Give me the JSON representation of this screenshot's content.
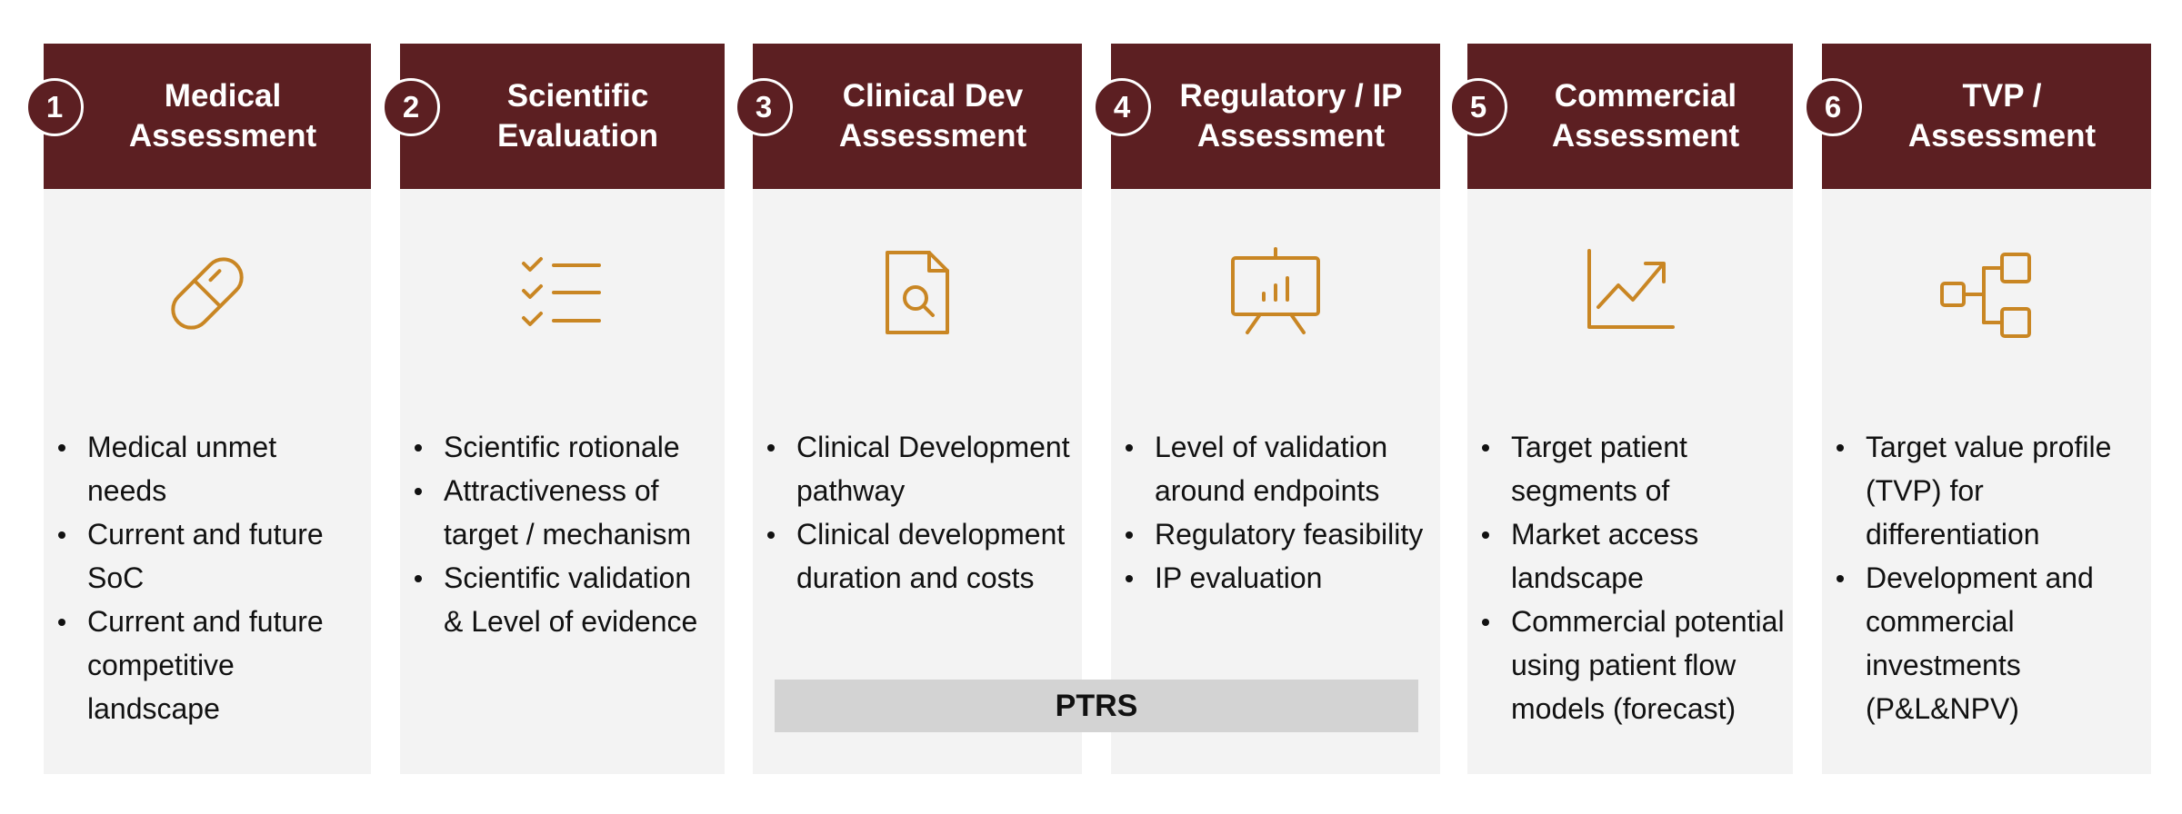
{
  "colors": {
    "header_bg": "#5c1f22",
    "panel_bg": "#f3f3f3",
    "icon_stroke": "#c98623",
    "ptrs_bg": "#d3d3d3"
  },
  "columns": [
    {
      "number": "1",
      "title": "Medical\nAssessment",
      "icon": "pill-icon",
      "bullets": [
        "Medical unmet needs",
        "Current and future SoC",
        "Current and future competitive landscape"
      ]
    },
    {
      "number": "2",
      "title": "Scientific\nEvaluation",
      "icon": "checklist-icon",
      "bullets": [
        "Scientific rotionale",
        "Attractiveness of target / mechanism",
        "Scientific validation & Level of evidence"
      ]
    },
    {
      "number": "3",
      "title": "Clinical Dev\nAssessment",
      "icon": "document-search-icon",
      "bullets": [
        "Clinical Development pathway",
        "Clinical development duration and costs"
      ]
    },
    {
      "number": "4",
      "title": "Regulatory / IP\nAssessment",
      "icon": "presentation-chart-icon",
      "bullets": [
        "Level of validation around endpoints",
        "Regulatory feasibility",
        "IP evaluation"
      ]
    },
    {
      "number": "5",
      "title": "Commercial\nAssessment",
      "icon": "trend-up-chart-icon",
      "bullets": [
        "Target patient segments of",
        "Market access landscape",
        "Commercial potential using patient flow models (forecast)"
      ]
    },
    {
      "number": "6",
      "title": "TVP /\nAssessment",
      "icon": "hierarchy-icon",
      "bullets": [
        "Target value profile (TVP) for differentiation",
        "Development and commercial investments (P&L&NPV)"
      ]
    }
  ],
  "ptrs": {
    "label": "PTRS"
  }
}
